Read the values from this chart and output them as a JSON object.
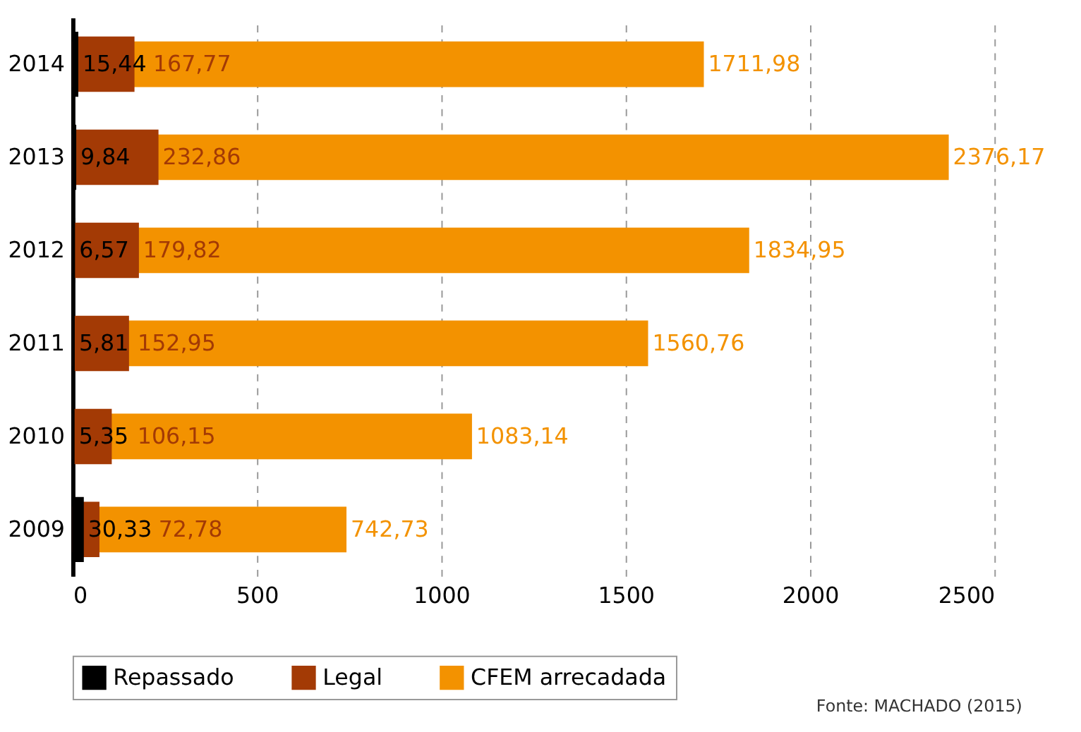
{
  "chart_data": {
    "type": "bar",
    "orientation": "horizontal",
    "categories": [
      "2014",
      "2013",
      "2012",
      "2011",
      "2010",
      "2009"
    ],
    "series": [
      {
        "name": "Repassado",
        "color": "#000000",
        "values": [
          15.44,
          9.84,
          6.57,
          5.81,
          5.35,
          30.33
        ],
        "value_labels": [
          "15,44",
          "9,84",
          "6,57",
          "5,81",
          "5,35",
          "30,33"
        ]
      },
      {
        "name": "Legal",
        "color": "#a33a05",
        "values": [
          167.77,
          232.86,
          179.82,
          152.95,
          106.15,
          72.78
        ],
        "value_labels": [
          "167,77",
          "232,86",
          "179,82",
          "152,95",
          "106,15",
          "72,78"
        ]
      },
      {
        "name": "CFEM arrecadada",
        "color": "#f39200",
        "values": [
          1711.98,
          2376.17,
          1834.95,
          1560.76,
          1083.14,
          742.73
        ],
        "value_labels": [
          "1711,98",
          "2376,17",
          "1834,95",
          "1560,76",
          "1083,14",
          "742,73"
        ]
      }
    ],
    "xlim": [
      0,
      2500
    ],
    "xticks": [
      0,
      500,
      1000,
      1500,
      2000,
      2500
    ],
    "grid": "x",
    "legend": "bottom",
    "annotations": [
      "Fonte: MACHADO (2015)"
    ]
  }
}
